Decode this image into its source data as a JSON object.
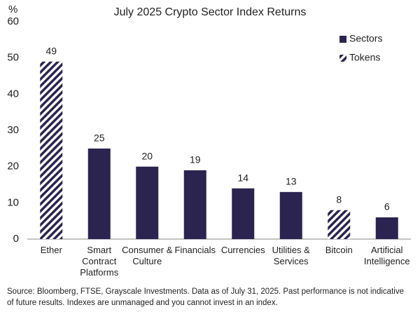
{
  "chart_data": {
    "type": "bar",
    "title": "July 2025 Crypto Sector Index Returns",
    "y_label": "%",
    "categories": [
      "Ether",
      "Smart Contract Platforms",
      "Consumer & Culture",
      "Financials",
      "Currencies",
      "Utilities & Services",
      "Bitcoin",
      "Artificial Intelligence"
    ],
    "series": [
      {
        "name": "Sectors",
        "color": "#2b2350",
        "pattern": "solid",
        "values": [
          null,
          25,
          20,
          19,
          14,
          13,
          null,
          6
        ]
      },
      {
        "name": "Tokens",
        "color": "#2b2350",
        "pattern": "hatch",
        "values": [
          49,
          null,
          null,
          null,
          null,
          null,
          8,
          null
        ]
      }
    ],
    "ylim": [
      0,
      60
    ],
    "yticks": [
      0,
      10,
      20,
      30,
      40,
      50,
      60
    ],
    "grid": false,
    "legend": "top-right",
    "notes": [
      "Source: Bloomberg, FTSE, Grayscale Investments. Data as of July 31, 2025. Past performance is not indicative",
      "of future results. Indexes are unmanaged and you cannot invest in an index."
    ]
  }
}
